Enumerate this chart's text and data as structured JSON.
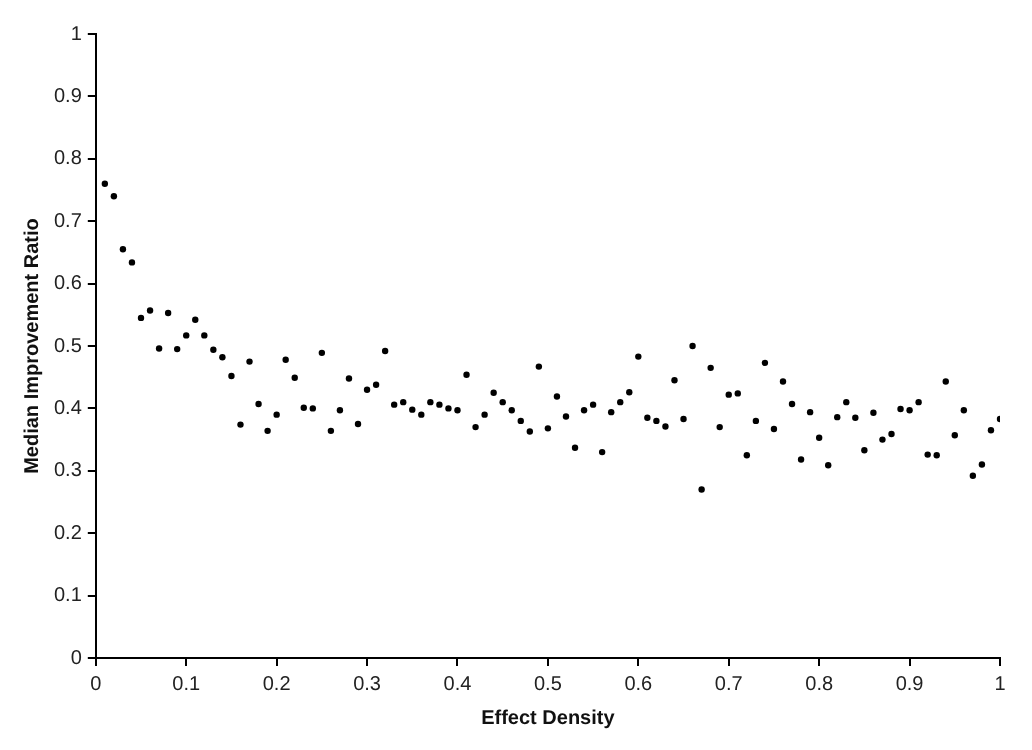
{
  "chart_data": {
    "type": "scatter",
    "xlabel": "Effect Density",
    "ylabel": "Median Improvement Ratio",
    "x": [
      0.01,
      0.02,
      0.03,
      0.04,
      0.05,
      0.06,
      0.07,
      0.08,
      0.09,
      0.1,
      0.11,
      0.12,
      0.13,
      0.14,
      0.15,
      0.16,
      0.17,
      0.18,
      0.19,
      0.2,
      0.21,
      0.22,
      0.23,
      0.24,
      0.25,
      0.26,
      0.27,
      0.28,
      0.29,
      0.3,
      0.31,
      0.32,
      0.33,
      0.34,
      0.35,
      0.36,
      0.37,
      0.38,
      0.39,
      0.4,
      0.41,
      0.42,
      0.43,
      0.44,
      0.45,
      0.46,
      0.47,
      0.48,
      0.49,
      0.5,
      0.51,
      0.52,
      0.53,
      0.54,
      0.55,
      0.56,
      0.57,
      0.58,
      0.59,
      0.6,
      0.61,
      0.62,
      0.63,
      0.64,
      0.65,
      0.66,
      0.67,
      0.68,
      0.69,
      0.7,
      0.71,
      0.72,
      0.73,
      0.74,
      0.75,
      0.76,
      0.77,
      0.78,
      0.79,
      0.8,
      0.81,
      0.82,
      0.83,
      0.84,
      0.85,
      0.86,
      0.87,
      0.88,
      0.89,
      0.9,
      0.91,
      0.92,
      0.93,
      0.94,
      0.95,
      0.96,
      0.97,
      0.98,
      0.99,
      1.0
    ],
    "series": [
      {
        "color": "#000000",
        "values": [
          0.76,
          0.74,
          0.655,
          0.634,
          0.545,
          0.557,
          0.496,
          0.553,
          0.495,
          0.517,
          0.542,
          0.517,
          0.494,
          0.482,
          0.452,
          0.374,
          0.475,
          0.407,
          0.364,
          0.39,
          0.478,
          0.449,
          0.401,
          0.4,
          0.489,
          0.364,
          0.397,
          0.448,
          0.375,
          0.43,
          0.438,
          0.492,
          0.406,
          0.41,
          0.398,
          0.39,
          0.41,
          0.406,
          0.4,
          0.397,
          0.454,
          0.37,
          0.39,
          0.425,
          0.41,
          0.397,
          0.38,
          0.363,
          0.467,
          0.368,
          0.419,
          0.387,
          0.337,
          0.397,
          0.406,
          0.33,
          0.394,
          0.41,
          0.426,
          0.483,
          0.385,
          0.38,
          0.371,
          0.445,
          0.383,
          0.5,
          0.27,
          0.465,
          0.37,
          0.422,
          0.424,
          0.325,
          0.38,
          0.473,
          0.367,
          0.443,
          0.407,
          0.318,
          0.394,
          0.353,
          0.309,
          0.386,
          0.41,
          0.385,
          0.333,
          0.393,
          0.35,
          0.359,
          0.399,
          0.397,
          0.41,
          0.326,
          0.325,
          0.443,
          0.357,
          0.397,
          0.292,
          0.31,
          0.365,
          0.383
        ]
      }
    ],
    "xlim": [
      0,
      1
    ],
    "xticks": [
      0,
      0.1,
      0.2,
      0.3,
      0.4,
      0.5,
      0.6,
      0.7,
      0.8,
      0.9,
      1
    ],
    "ylim": [
      0,
      1
    ],
    "yticks": [
      0,
      0.1,
      0.2,
      0.3,
      0.4,
      0.5,
      0.6,
      0.7,
      0.8,
      0.9,
      1
    ],
    "grid": false,
    "legend": false,
    "marker": "circle"
  }
}
